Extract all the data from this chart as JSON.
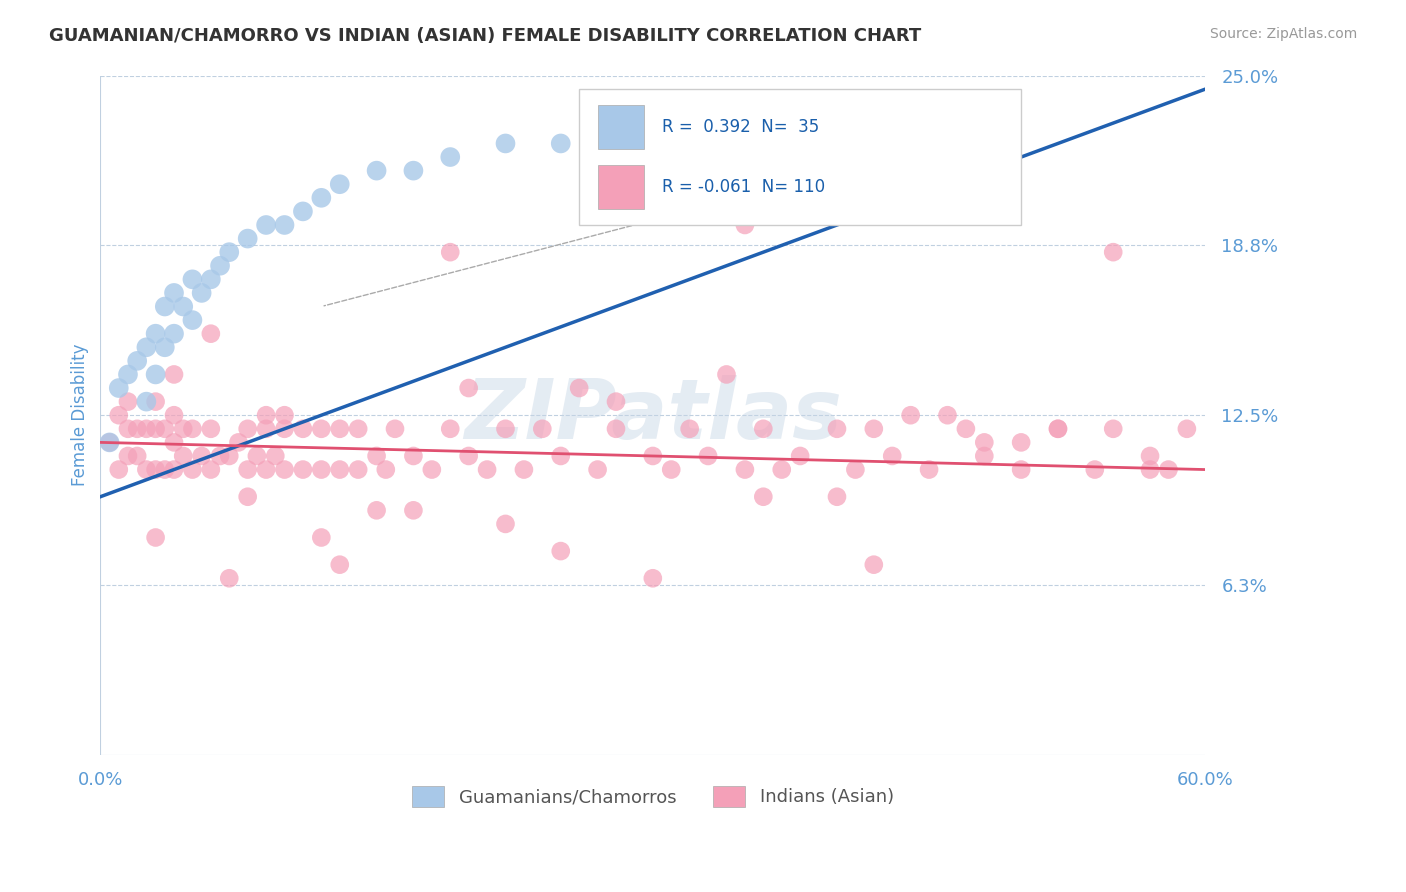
{
  "title": "GUAMANIAN/CHAMORRO VS INDIAN (ASIAN) FEMALE DISABILITY CORRELATION CHART",
  "source": "Source: ZipAtlas.com",
  "ylabel": "Female Disability",
  "y_ticks": [
    0.0,
    0.0625,
    0.125,
    0.1875,
    0.25
  ],
  "y_tick_labels": [
    "",
    "6.3%",
    "12.5%",
    "18.8%",
    "25.0%"
  ],
  "x_lim": [
    0.0,
    0.6
  ],
  "y_lim": [
    0.0,
    0.25
  ],
  "r_blue": 0.392,
  "n_blue": 35,
  "r_pink": -0.061,
  "n_pink": 110,
  "color_blue": "#A8C8E8",
  "color_pink": "#F4A0B8",
  "color_blue_line": "#2060B0",
  "color_pink_line": "#E05070",
  "legend_label_blue": "Guamanians/Chamorros",
  "legend_label_pink": "Indians (Asian)",
  "watermark": "ZIPatlas",
  "blue_x": [
    0.005,
    0.01,
    0.015,
    0.02,
    0.025,
    0.025,
    0.03,
    0.03,
    0.035,
    0.035,
    0.04,
    0.04,
    0.045,
    0.05,
    0.05,
    0.055,
    0.06,
    0.065,
    0.07,
    0.08,
    0.09,
    0.1,
    0.11,
    0.12,
    0.13,
    0.15,
    0.17,
    0.19,
    0.22,
    0.25,
    0.28,
    0.32,
    0.38,
    0.42,
    0.48
  ],
  "blue_y": [
    0.115,
    0.135,
    0.14,
    0.145,
    0.13,
    0.15,
    0.14,
    0.155,
    0.15,
    0.165,
    0.155,
    0.17,
    0.165,
    0.16,
    0.175,
    0.17,
    0.175,
    0.18,
    0.185,
    0.19,
    0.195,
    0.195,
    0.2,
    0.205,
    0.21,
    0.215,
    0.215,
    0.22,
    0.225,
    0.225,
    0.225,
    0.225,
    0.225,
    0.225,
    0.225
  ],
  "pink_x": [
    0.005,
    0.01,
    0.01,
    0.015,
    0.015,
    0.015,
    0.02,
    0.02,
    0.025,
    0.025,
    0.03,
    0.03,
    0.03,
    0.035,
    0.035,
    0.04,
    0.04,
    0.04,
    0.045,
    0.045,
    0.05,
    0.05,
    0.055,
    0.06,
    0.06,
    0.065,
    0.07,
    0.075,
    0.08,
    0.08,
    0.085,
    0.09,
    0.09,
    0.095,
    0.1,
    0.1,
    0.11,
    0.11,
    0.12,
    0.12,
    0.13,
    0.13,
    0.14,
    0.14,
    0.15,
    0.155,
    0.16,
    0.17,
    0.18,
    0.19,
    0.2,
    0.21,
    0.22,
    0.23,
    0.24,
    0.25,
    0.27,
    0.28,
    0.3,
    0.31,
    0.32,
    0.33,
    0.35,
    0.36,
    0.37,
    0.38,
    0.4,
    0.41,
    0.42,
    0.43,
    0.45,
    0.47,
    0.48,
    0.5,
    0.52,
    0.54,
    0.55,
    0.57,
    0.58,
    0.59,
    0.04,
    0.08,
    0.12,
    0.17,
    0.22,
    0.28,
    0.34,
    0.4,
    0.46,
    0.52,
    0.06,
    0.1,
    0.15,
    0.2,
    0.25,
    0.3,
    0.36,
    0.42,
    0.48,
    0.55,
    0.03,
    0.07,
    0.13,
    0.19,
    0.26,
    0.35,
    0.44,
    0.5,
    0.57,
    0.09
  ],
  "pink_y": [
    0.115,
    0.105,
    0.125,
    0.11,
    0.12,
    0.13,
    0.11,
    0.12,
    0.105,
    0.12,
    0.105,
    0.12,
    0.13,
    0.105,
    0.12,
    0.105,
    0.115,
    0.125,
    0.11,
    0.12,
    0.105,
    0.12,
    0.11,
    0.105,
    0.12,
    0.11,
    0.11,
    0.115,
    0.105,
    0.12,
    0.11,
    0.105,
    0.12,
    0.11,
    0.105,
    0.12,
    0.105,
    0.12,
    0.105,
    0.12,
    0.105,
    0.12,
    0.105,
    0.12,
    0.11,
    0.105,
    0.12,
    0.11,
    0.105,
    0.12,
    0.11,
    0.105,
    0.12,
    0.105,
    0.12,
    0.11,
    0.105,
    0.12,
    0.11,
    0.105,
    0.12,
    0.11,
    0.105,
    0.12,
    0.105,
    0.11,
    0.12,
    0.105,
    0.12,
    0.11,
    0.105,
    0.12,
    0.11,
    0.105,
    0.12,
    0.105,
    0.12,
    0.11,
    0.105,
    0.12,
    0.14,
    0.095,
    0.08,
    0.09,
    0.085,
    0.13,
    0.14,
    0.095,
    0.125,
    0.12,
    0.155,
    0.125,
    0.09,
    0.135,
    0.075,
    0.065,
    0.095,
    0.07,
    0.115,
    0.185,
    0.08,
    0.065,
    0.07,
    0.185,
    0.135,
    0.195,
    0.125,
    0.115,
    0.105,
    0.125
  ],
  "blue_trend_x": [
    0.0,
    0.6
  ],
  "blue_trend_y": [
    0.095,
    0.245
  ],
  "pink_trend_x": [
    0.0,
    0.6
  ],
  "pink_trend_y": [
    0.115,
    0.105
  ]
}
